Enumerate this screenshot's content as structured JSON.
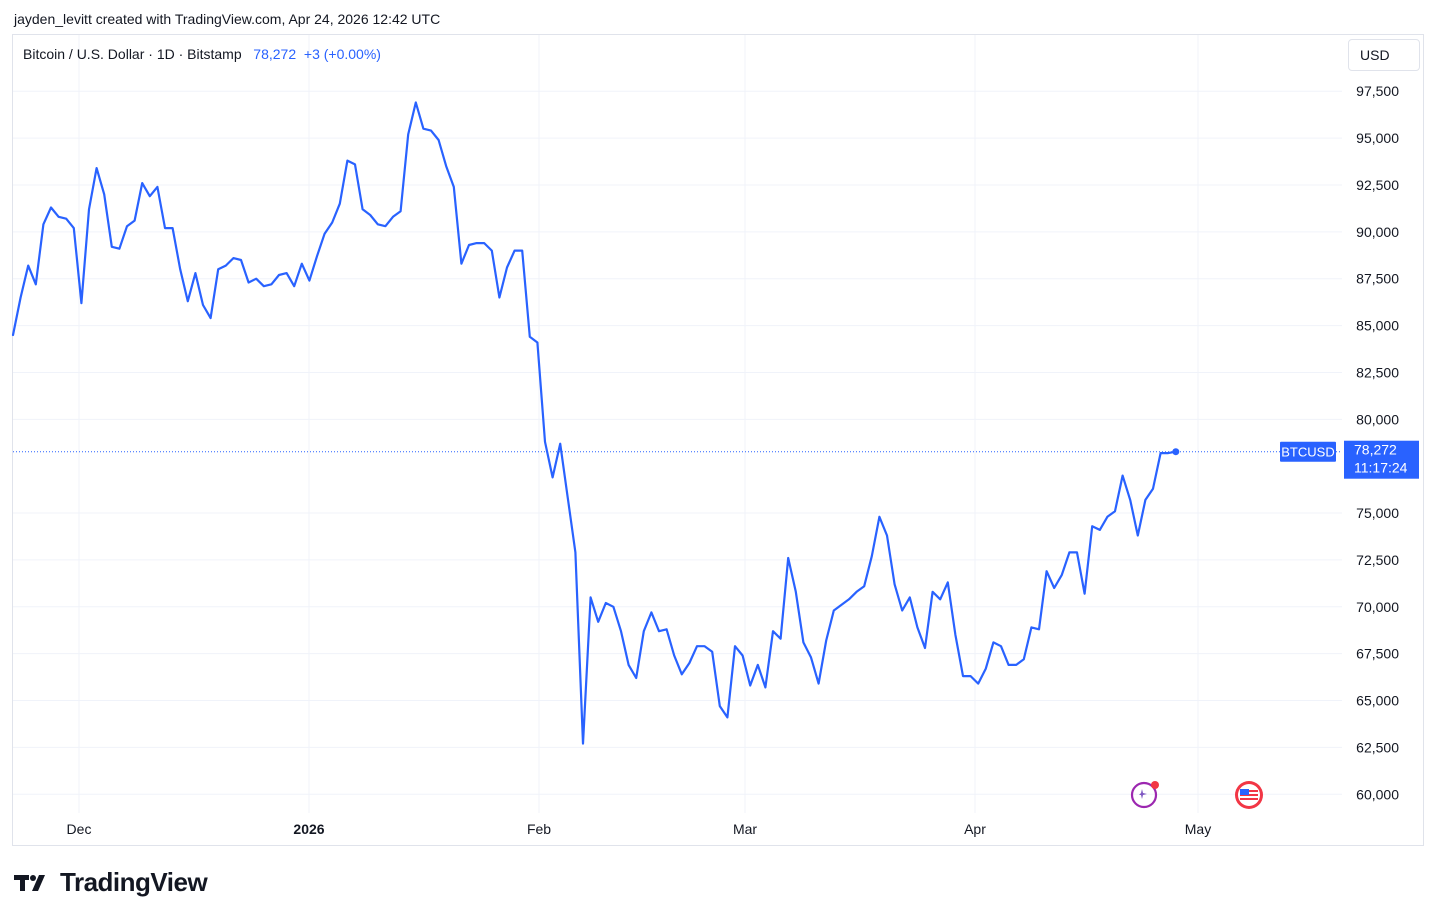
{
  "credit": "jayden_levitt created with TradingView.com, Apr 24, 2026 12:42 UTC",
  "legend": {
    "symbol": "Bitcoin / U.S. Dollar · 1D · Bitstamp",
    "price": "78,272",
    "change": "+3 (+0.00%)"
  },
  "currency_button": "USD",
  "brand": {
    "name": "TradingView"
  },
  "icons": [
    "spark-icon",
    "us-flag-icon"
  ],
  "colors": {
    "line": "#2962ff",
    "grid": "#f0f3fa",
    "text": "#131722",
    "border": "#e0e3eb"
  },
  "chart_data": {
    "type": "line",
    "series": [
      {
        "name": "BTCUSD",
        "values": [
          84500,
          86500,
          88200,
          87200,
          90400,
          91300,
          90800,
          90700,
          90200,
          86200,
          91200,
          93400,
          92000,
          89200,
          89100,
          90300,
          90600,
          92600,
          91900,
          92400,
          90200,
          90200,
          88000,
          86300,
          87800,
          86100,
          85400,
          88000,
          88200,
          88600,
          88500,
          87300,
          87500,
          87100,
          87200,
          87700,
          87800,
          87100,
          88300,
          87400,
          88700,
          89900,
          90500,
          91500,
          93800,
          93600,
          91200,
          90900,
          90400,
          90300,
          90800,
          91100,
          95200,
          96900,
          95500,
          95400,
          94900,
          93500,
          92400,
          88300,
          89300,
          89400,
          89400,
          89000,
          86500,
          88100,
          89000,
          89000,
          84400,
          84100,
          78800,
          76900,
          78700,
          75800,
          72900,
          62700,
          70500,
          69200,
          70200,
          70000,
          68700,
          66900,
          66200,
          68700,
          69700,
          68700,
          68800,
          67400,
          66400,
          67000,
          67900,
          67900,
          67600,
          64700,
          64100,
          67900,
          67400,
          65800,
          66900,
          65700,
          68700,
          68300,
          72600,
          70800,
          68100,
          67300,
          65900,
          68200,
          69800,
          70100,
          70400,
          70800,
          71100,
          72700,
          74800,
          73800,
          71200,
          69800,
          70500,
          68900,
          67800,
          70800,
          70400,
          71300,
          68500,
          66300,
          66300,
          65900,
          66700,
          68100,
          67900,
          66900,
          66900,
          67200,
          68900,
          68800,
          71900,
          71000,
          71700,
          72900,
          72900,
          70700,
          74300,
          74100,
          74800,
          75100,
          77000,
          75700,
          73800,
          75700,
          76300,
          78200,
          78200,
          78272
        ]
      }
    ],
    "last_price": {
      "value": 78272,
      "symbol": "BTCUSD",
      "label": "78,272",
      "countdown": "11:17:24"
    },
    "ylim": [
      59000,
      100500
    ],
    "y_ticks": [
      {
        "value": 97500,
        "label": "97,500"
      },
      {
        "value": 95000,
        "label": "95,000"
      },
      {
        "value": 92500,
        "label": "92,500"
      },
      {
        "value": 90000,
        "label": "90,000"
      },
      {
        "value": 87500,
        "label": "87,500"
      },
      {
        "value": 85000,
        "label": "85,000"
      },
      {
        "value": 82500,
        "label": "82,500"
      },
      {
        "value": 80000,
        "label": "80,000"
      },
      {
        "value": 75000,
        "label": "75,000"
      },
      {
        "value": 72500,
        "label": "72,500"
      },
      {
        "value": 70000,
        "label": "70,000"
      },
      {
        "value": 67500,
        "label": "67,500"
      },
      {
        "value": 65000,
        "label": "65,000"
      },
      {
        "value": 62500,
        "label": "62,500"
      },
      {
        "value": 60000,
        "label": "60,000"
      }
    ],
    "x_ticks": [
      {
        "label": "Dec",
        "bold": false
      },
      {
        "label": "2026",
        "bold": true
      },
      {
        "label": "Feb",
        "bold": false
      },
      {
        "label": "Mar",
        "bold": false
      },
      {
        "label": "Apr",
        "bold": false
      },
      {
        "label": "May",
        "bold": false
      }
    ],
    "grid": true,
    "legend_position": "top-left"
  }
}
